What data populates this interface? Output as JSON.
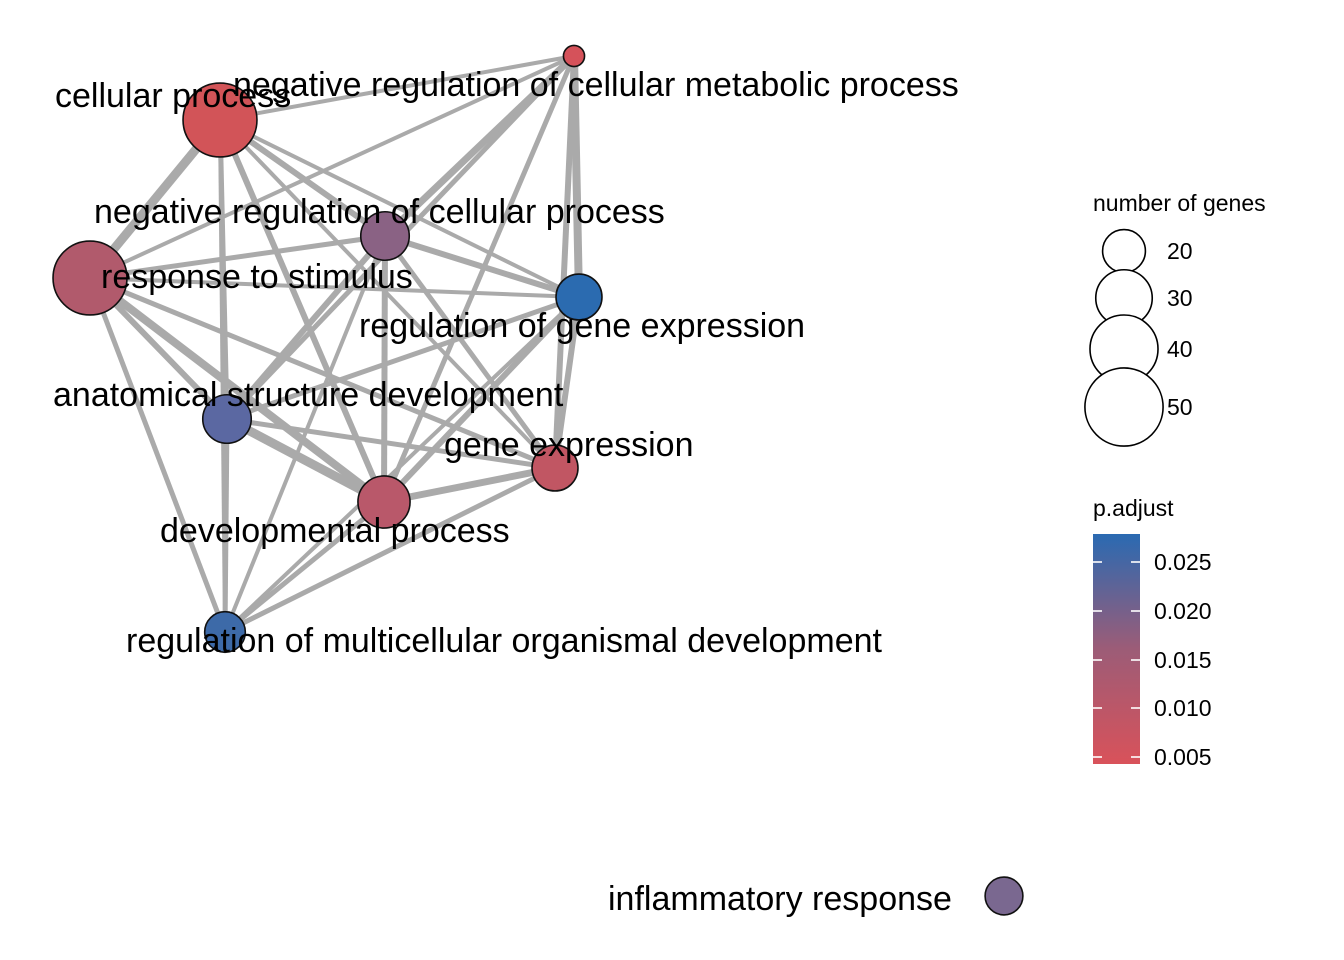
{
  "nodes": [
    {
      "id": "n1",
      "label": "cellular process",
      "genes": 54,
      "p_adjust": 0.0045,
      "color": "#d25458"
    },
    {
      "id": "n2",
      "label": "negative regulation of cellular metabolic process",
      "genes": 12,
      "p_adjust": 0.004,
      "color": "#d5525a"
    },
    {
      "id": "n3",
      "label": "negative regulation of cellular process",
      "genes": 30,
      "p_adjust": 0.019,
      "color": "#8a6284"
    },
    {
      "id": "n4",
      "label": "response to stimulus",
      "genes": 54,
      "p_adjust": 0.013,
      "color": "#b15a6c"
    },
    {
      "id": "n5",
      "label": "regulation of gene expression",
      "genes": 28,
      "p_adjust": 0.028,
      "color": "#2b6bb0"
    },
    {
      "id": "n6",
      "label": "anatomical structure development",
      "genes": 30,
      "p_adjust": 0.024,
      "color": "#5b68a2"
    },
    {
      "id": "n7",
      "label": "gene expression",
      "genes": 28,
      "p_adjust": 0.01,
      "color": "#c15663"
    },
    {
      "id": "n8",
      "label": "developmental process",
      "genes": 33,
      "p_adjust": 0.012,
      "color": "#b9586a"
    },
    {
      "id": "n9",
      "label": "regulation of multicellular organismal development",
      "genes": 24,
      "p_adjust": 0.027,
      "color": "#3d6aa8"
    },
    {
      "id": "n10",
      "label": "inflammatory response",
      "genes": 22,
      "p_adjust": 0.02,
      "color": "#7a6890"
    }
  ],
  "edges": [
    {
      "from": "n1",
      "to": "n2",
      "weight": 4
    },
    {
      "from": "n1",
      "to": "n3",
      "weight": 6
    },
    {
      "from": "n1",
      "to": "n4",
      "weight": 9
    },
    {
      "from": "n1",
      "to": "n5",
      "weight": 4
    },
    {
      "from": "n1",
      "to": "n6",
      "weight": 5
    },
    {
      "from": "n1",
      "to": "n7",
      "weight": 4
    },
    {
      "from": "n1",
      "to": "n8",
      "weight": 6
    },
    {
      "from": "n1",
      "to": "n9",
      "weight": 4
    },
    {
      "from": "n2",
      "to": "n4",
      "weight": 4
    },
    {
      "from": "n2",
      "to": "n3",
      "weight": 7
    },
    {
      "from": "n2",
      "to": "n5",
      "weight": 8
    },
    {
      "from": "n2",
      "to": "n6",
      "weight": 5
    },
    {
      "from": "n2",
      "to": "n7",
      "weight": 6
    },
    {
      "from": "n2",
      "to": "n8",
      "weight": 5
    },
    {
      "from": "n3",
      "to": "n4",
      "weight": 5
    },
    {
      "from": "n3",
      "to": "n5",
      "weight": 6
    },
    {
      "from": "n3",
      "to": "n6",
      "weight": 6
    },
    {
      "from": "n3",
      "to": "n7",
      "weight": 5
    },
    {
      "from": "n3",
      "to": "n8",
      "weight": 6
    },
    {
      "from": "n3",
      "to": "n9",
      "weight": 4
    },
    {
      "from": "n4",
      "to": "n5",
      "weight": 4
    },
    {
      "from": "n4",
      "to": "n6",
      "weight": 6
    },
    {
      "from": "n4",
      "to": "n7",
      "weight": 5
    },
    {
      "from": "n4",
      "to": "n8",
      "weight": 8
    },
    {
      "from": "n4",
      "to": "n9",
      "weight": 5
    },
    {
      "from": "n5",
      "to": "n6",
      "weight": 5
    },
    {
      "from": "n5",
      "to": "n7",
      "weight": 6
    },
    {
      "from": "n5",
      "to": "n8",
      "weight": 6
    },
    {
      "from": "n5",
      "to": "n9",
      "weight": 4
    },
    {
      "from": "n6",
      "to": "n7",
      "weight": 5
    },
    {
      "from": "n6",
      "to": "n8",
      "weight": 9
    },
    {
      "from": "n6",
      "to": "n9",
      "weight": 5
    },
    {
      "from": "n7",
      "to": "n8",
      "weight": 7
    },
    {
      "from": "n7",
      "to": "n9",
      "weight": 5
    },
    {
      "from": "n8",
      "to": "n9",
      "weight": 5
    }
  ],
  "legend": {
    "size_title": "number of genes",
    "size_entries": [
      {
        "label": "20",
        "genes": 20
      },
      {
        "label": "30",
        "genes": 30
      },
      {
        "label": "40",
        "genes": 40
      },
      {
        "label": "50",
        "genes": 50
      }
    ],
    "color_title": "p.adjust",
    "color_ticks": [
      "0.025",
      "0.020",
      "0.015",
      "0.010",
      "0.005"
    ],
    "color_low": "#d9525a",
    "color_high": "#2a6ab2"
  }
}
